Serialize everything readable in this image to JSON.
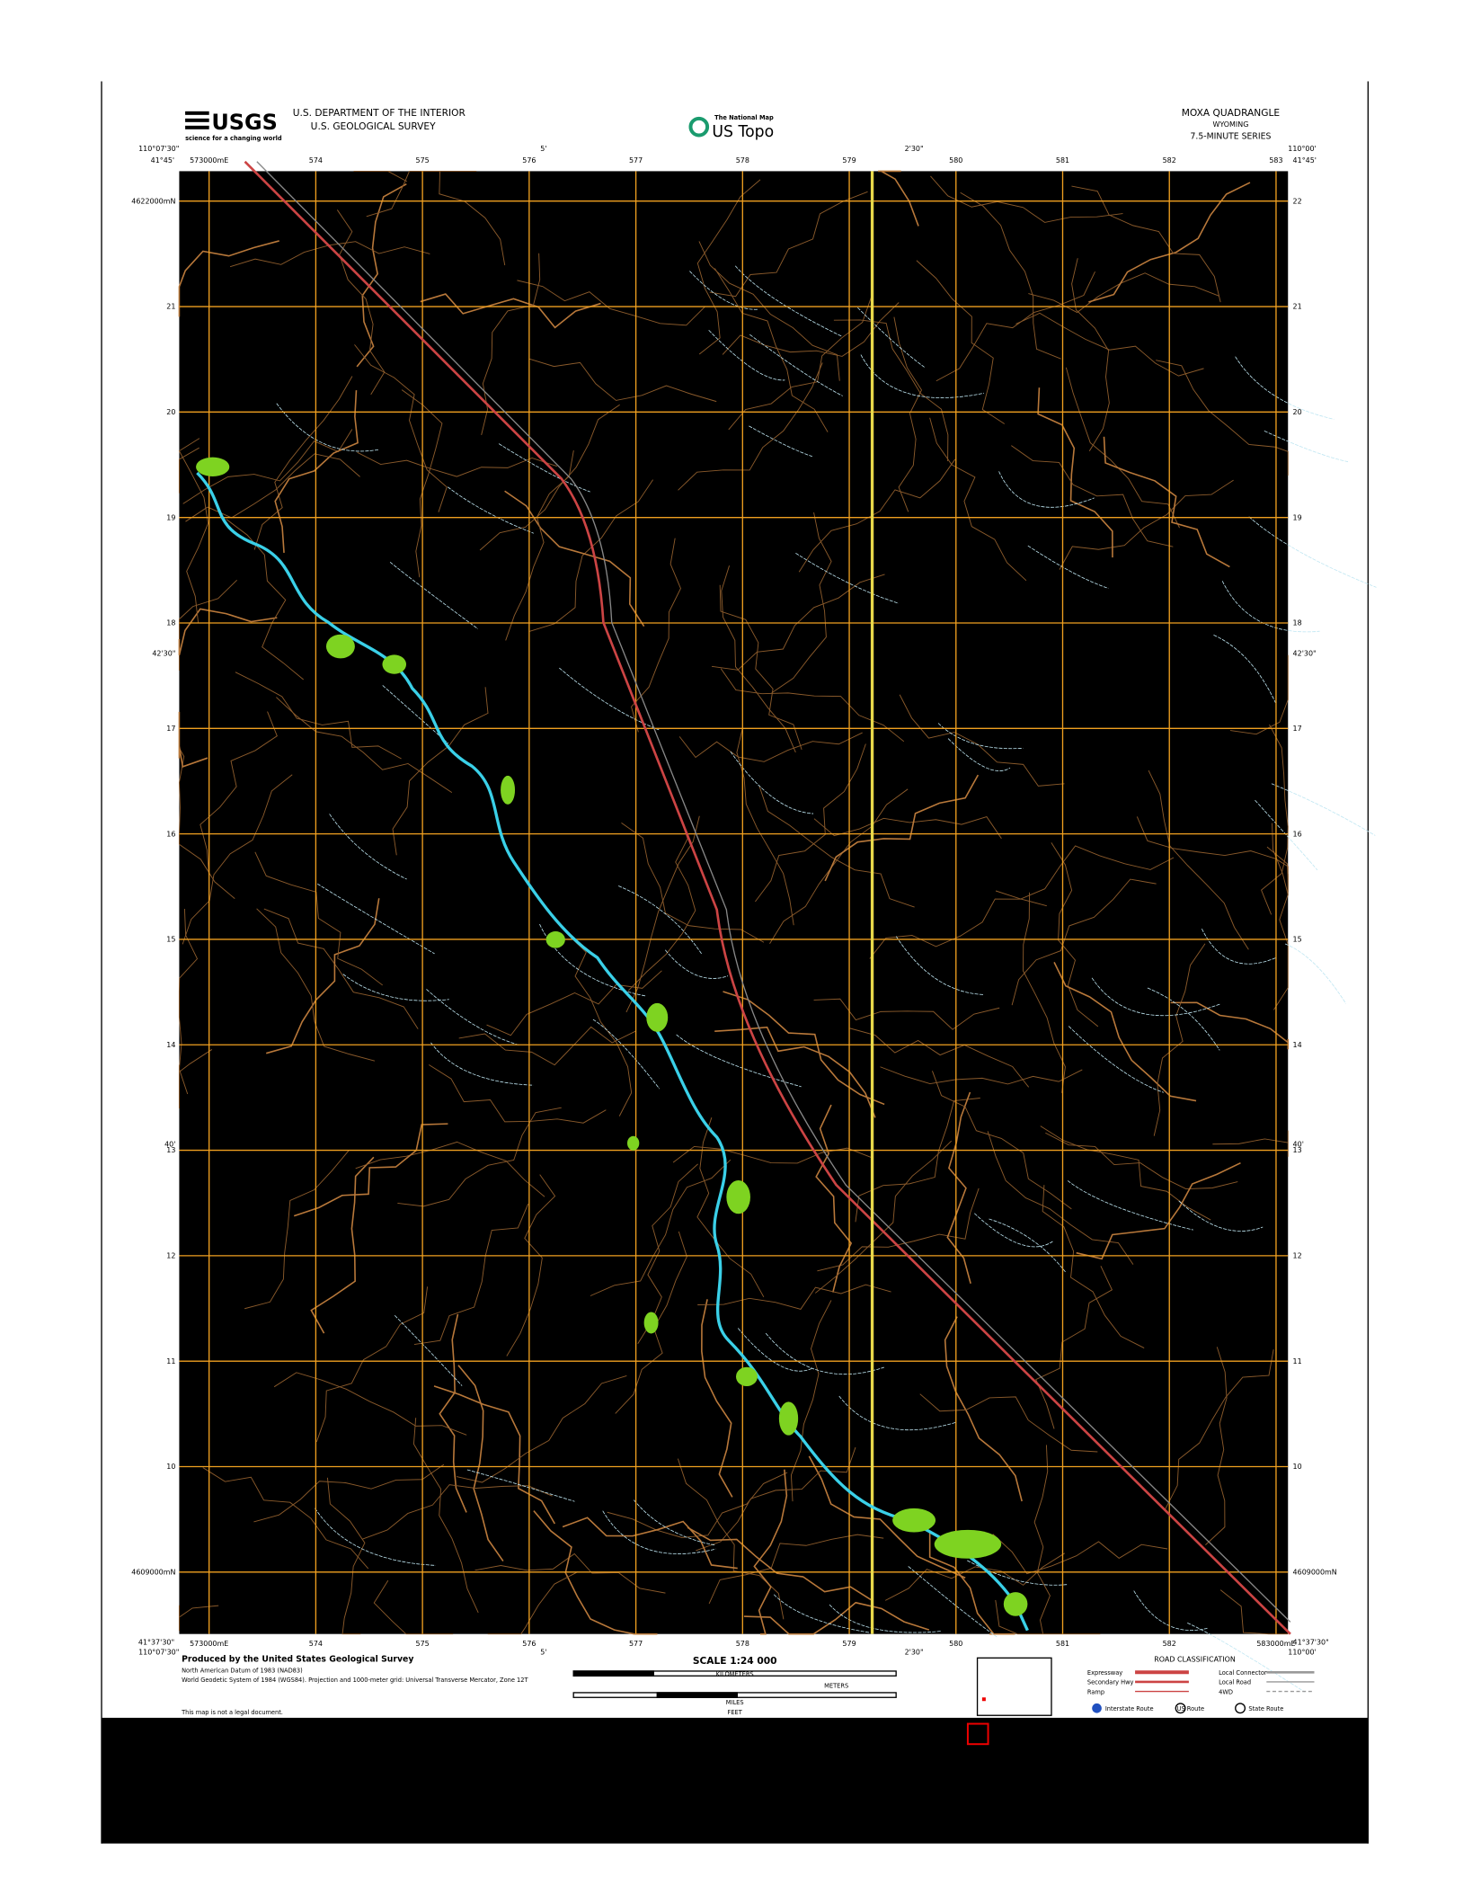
{
  "header": {
    "agency_logo": "USGS",
    "agency_tagline": "science for a changing world",
    "department": "U.S. DEPARTMENT OF THE INTERIOR",
    "survey": "U.S. GEOLOGICAL SURVEY",
    "product_kicker": "The National Map",
    "product": "US Topo",
    "quadrangle": "MOXA QUADRANGLE",
    "state": "WYOMING",
    "series": "7.5-MINUTE SERIES"
  },
  "corners": {
    "nw_lon": "110°07'30\"",
    "nw_lat": "41°45'",
    "ne_lon": "110°00'",
    "ne_lat": "41°45'",
    "sw_lon": "110°07'30\"",
    "sw_lat": "41°37'30\"",
    "se_lon": "110°00'",
    "se_lat": "41°37'30\""
  },
  "grid_labels": {
    "top": [
      "573000mE",
      "574",
      "575",
      "576",
      "577",
      "578",
      "579",
      "580",
      "581",
      "582",
      "583"
    ],
    "bottom": [
      "573000mE",
      "574",
      "575",
      "576",
      "577",
      "578",
      "579",
      "580",
      "581",
      "582",
      "583000mE"
    ],
    "left": [
      "4622000mN",
      "21",
      "20",
      "19",
      "18",
      "17",
      "16",
      "15",
      "14",
      "13",
      "12",
      "11",
      "10",
      "4609000mN"
    ],
    "right": [
      "22",
      "21",
      "20",
      "19",
      "18",
      "17",
      "16",
      "15",
      "14",
      "13",
      "12",
      "11",
      "10",
      "4609000mN"
    ],
    "lat_mid": "42'30\"",
    "lat_mid2": "40'",
    "lon_mid": "5'",
    "lon_mid2": "2'30\""
  },
  "footer": {
    "producer": "Produced by the United States Geological Survey",
    "datum": "North American Datum of 1983 (NAD83)",
    "projection": "World Geodetic System of 1984 (WGS84). Projection and 1000-meter grid: Universal Transverse Mercator, Zone 12T",
    "legal": "This map is not a legal document.",
    "scale": "SCALE 1:24 000",
    "km": "KILOMETERS",
    "meters": "METERS",
    "miles": "MILES",
    "feet": "FEET",
    "road_title": "ROAD CLASSIFICATION",
    "roads": [
      "Expressway",
      "Secondary Hwy",
      "Ramp",
      "Local Connector",
      "Local Road",
      "4WD"
    ],
    "routes": [
      "Interstate Route",
      "US Route",
      "State Route"
    ]
  }
}
